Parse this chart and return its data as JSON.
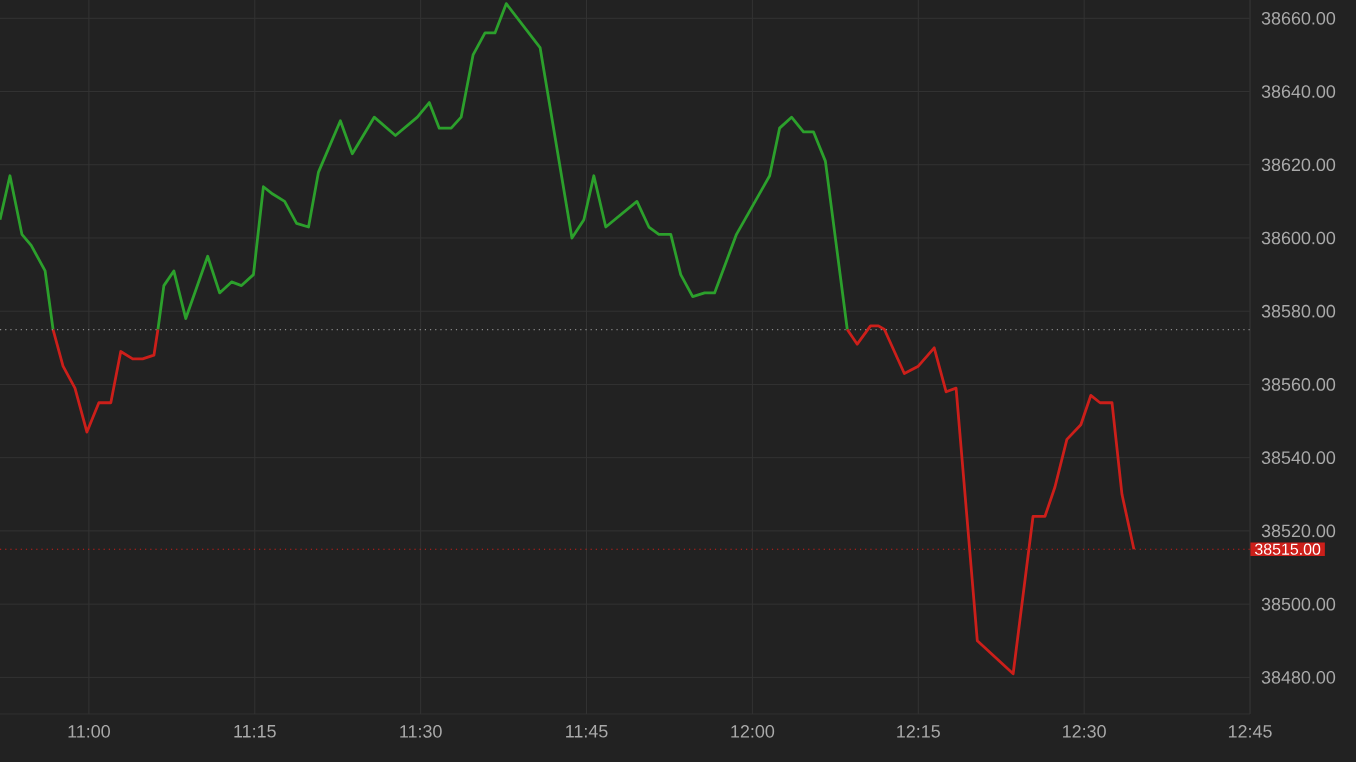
{
  "chart_data": {
    "type": "line",
    "x": [
      10.866,
      10.881,
      10.899,
      10.913,
      10.934,
      10.946,
      10.961,
      10.979,
      10.997,
      11.015,
      11.033,
      11.048,
      11.066,
      11.081,
      11.098,
      11.104,
      11.113,
      11.128,
      11.146,
      11.179,
      11.197,
      11.215,
      11.23,
      11.248,
      11.263,
      11.277,
      11.295,
      11.313,
      11.331,
      11.346,
      11.379,
      11.397,
      11.43,
      11.462,
      11.495,
      11.513,
      11.528,
      11.546,
      11.561,
      11.579,
      11.597,
      11.612,
      11.629,
      11.68,
      11.728,
      11.746,
      11.761,
      11.779,
      11.826,
      11.844,
      11.859,
      11.877,
      11.892,
      11.91,
      11.928,
      11.943,
      11.976,
      12.026,
      12.041,
      12.059,
      12.077,
      12.092,
      12.11,
      12.143,
      12.158,
      12.178,
      12.19,
      12.199,
      12.229,
      12.25,
      12.274,
      12.292,
      12.307,
      12.339,
      12.393,
      12.423,
      12.441,
      12.456,
      12.474,
      12.495,
      12.51,
      12.524,
      12.542,
      12.557,
      12.575
    ],
    "series": [
      {
        "color": "#2ca02c",
        "values": [
          38605,
          38617,
          38601,
          38598,
          38591,
          38575,
          null,
          null,
          null,
          null,
          null,
          null,
          null,
          null,
          null,
          38575,
          38587,
          38591,
          38578,
          38595,
          38585,
          38588,
          38587,
          38590,
          38614,
          38612,
          38610,
          38604,
          38603,
          38618,
          38632,
          38623,
          38633,
          38628,
          38633,
          38637,
          38630,
          38630,
          38633,
          38650,
          38656,
          38656,
          38664,
          38652,
          38600,
          38605,
          38617,
          38603,
          38610,
          38603,
          38601,
          38601,
          38590,
          38584,
          38585,
          38585,
          38601,
          38617,
          38630,
          38633,
          38629,
          38629,
          38621,
          38575,
          null,
          null,
          null,
          null,
          null,
          null,
          null,
          null,
          null,
          null,
          null,
          null,
          null,
          null,
          null,
          null,
          null,
          null,
          null,
          null,
          null
        ]
      },
      {
        "color": "#cc1f1a",
        "values": [
          null,
          null,
          null,
          null,
          null,
          38575,
          38565,
          38559,
          38547,
          38555,
          38555,
          38569,
          38567,
          38567,
          38568,
          38575,
          null,
          null,
          null,
          null,
          null,
          null,
          null,
          null,
          null,
          null,
          null,
          null,
          null,
          null,
          null,
          null,
          null,
          null,
          null,
          null,
          null,
          null,
          null,
          null,
          null,
          null,
          null,
          null,
          null,
          null,
          null,
          null,
          null,
          null,
          null,
          null,
          null,
          null,
          null,
          null,
          null,
          null,
          null,
          null,
          null,
          null,
          null,
          38575,
          38571,
          38576,
          38576,
          38575,
          38563,
          38565,
          38570,
          38558,
          38559,
          38490,
          38481,
          38524,
          38524,
          38532,
          38545,
          38549,
          38557,
          38555,
          38555,
          38530,
          38515
        ]
      }
    ],
    "xlim": [
      10.866,
      12.75
    ],
    "xticks": [
      {
        "value": 11,
        "label": "11:00"
      },
      {
        "value": 11.25,
        "label": "11:15"
      },
      {
        "value": 11.5,
        "label": "11:30"
      },
      {
        "value": 11.75,
        "label": "11:45"
      },
      {
        "value": 12,
        "label": "12:00"
      },
      {
        "value": 12.25,
        "label": "12:15"
      },
      {
        "value": 12.5,
        "label": "12:30"
      },
      {
        "value": 12.75,
        "label": "12:45"
      }
    ],
    "ylim": [
      38470,
      38665
    ],
    "yticks": [
      {
        "value": 38480,
        "label": "38480.00"
      },
      {
        "value": 38500,
        "label": "38500.00"
      },
      {
        "value": 38520,
        "label": "38520.00"
      },
      {
        "value": 38540,
        "label": "38540.00"
      },
      {
        "value": 38560,
        "label": "38560.00"
      },
      {
        "value": 38580,
        "label": "38580.00"
      },
      {
        "value": 38600,
        "label": "38600.00"
      },
      {
        "value": 38620,
        "label": "38620.00"
      },
      {
        "value": 38640,
        "label": "38640.00"
      },
      {
        "value": 38660,
        "label": "38660.00"
      }
    ],
    "grid": true,
    "ref_lines": [
      {
        "axis": "y",
        "value": 38575,
        "color": "#8a8a8a",
        "line_style": "dotted"
      },
      {
        "axis": "y",
        "value": 38515,
        "label": "38515.00",
        "color": "#cc1f1a",
        "line_style": "dotted"
      }
    ]
  }
}
